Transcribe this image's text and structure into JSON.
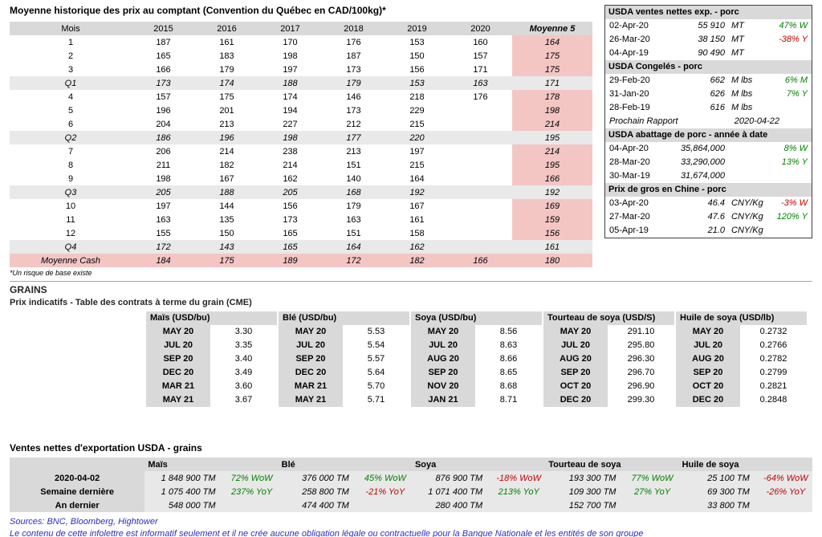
{
  "colors": {
    "positive": "#008000",
    "negative": "#c00000",
    "pink": "#f3c6c4",
    "header_gray": "#d9d9d9",
    "quarter_gray": "#e9e9e9",
    "cell_gray": "#e8e8e8",
    "footer_blue": "#2e2ebe"
  },
  "main_table": {
    "title": "Moyenne historique des prix au comptant (Convention du Québec en CAD/100kg)*",
    "headers": [
      "Mois",
      "2015",
      "2016",
      "2017",
      "2018",
      "2019",
      "2020",
      "Moyenne 5"
    ],
    "footnote": "*Un risque de base existe",
    "rows": [
      {
        "label": "1",
        "type": "month",
        "values": [
          "187",
          "161",
          "170",
          "176",
          "153",
          "160"
        ],
        "avg": "164"
      },
      {
        "label": "2",
        "type": "month",
        "values": [
          "165",
          "183",
          "198",
          "187",
          "150",
          "157"
        ],
        "avg": "175"
      },
      {
        "label": "3",
        "type": "month",
        "values": [
          "166",
          "179",
          "197",
          "173",
          "156",
          "171"
        ],
        "avg": "175"
      },
      {
        "label": "Q1",
        "type": "quarter",
        "values": [
          "173",
          "174",
          "188",
          "179",
          "153",
          "163"
        ],
        "avg": "171"
      },
      {
        "label": "4",
        "type": "month",
        "values": [
          "157",
          "175",
          "174",
          "146",
          "218",
          "176"
        ],
        "avg": "178"
      },
      {
        "label": "5",
        "type": "month",
        "values": [
          "196",
          "201",
          "194",
          "173",
          "229",
          ""
        ],
        "avg": "198"
      },
      {
        "label": "6",
        "type": "month",
        "values": [
          "204",
          "213",
          "227",
          "212",
          "215",
          ""
        ],
        "avg": "214"
      },
      {
        "label": "Q2",
        "type": "quarter",
        "values": [
          "186",
          "196",
          "198",
          "177",
          "220",
          ""
        ],
        "avg": "195"
      },
      {
        "label": "7",
        "type": "month",
        "values": [
          "206",
          "214",
          "238",
          "213",
          "197",
          ""
        ],
        "avg": "214"
      },
      {
        "label": "8",
        "type": "month",
        "values": [
          "211",
          "182",
          "214",
          "151",
          "215",
          ""
        ],
        "avg": "195"
      },
      {
        "label": "9",
        "type": "month",
        "values": [
          "198",
          "167",
          "162",
          "140",
          "164",
          ""
        ],
        "avg": "166"
      },
      {
        "label": "Q3",
        "type": "quarter",
        "values": [
          "205",
          "188",
          "205",
          "168",
          "192",
          ""
        ],
        "avg": "192"
      },
      {
        "label": "10",
        "type": "month",
        "values": [
          "197",
          "144",
          "156",
          "179",
          "167",
          ""
        ],
        "avg": "169"
      },
      {
        "label": "11",
        "type": "month",
        "values": [
          "163",
          "135",
          "173",
          "163",
          "161",
          ""
        ],
        "avg": "159"
      },
      {
        "label": "12",
        "type": "month",
        "values": [
          "155",
          "150",
          "165",
          "151",
          "158",
          ""
        ],
        "avg": "156"
      },
      {
        "label": "Q4",
        "type": "quarter",
        "values": [
          "172",
          "143",
          "165",
          "164",
          "162",
          ""
        ],
        "avg": "161"
      },
      {
        "label": "Moyenne Cash",
        "type": "cash",
        "values": [
          "184",
          "175",
          "189",
          "172",
          "182",
          "166"
        ],
        "avg": "180"
      }
    ]
  },
  "side_panels": [
    {
      "title": "USDA ventes nettes exp. - porc",
      "rows": [
        {
          "date": "02-Apr-20",
          "value": "55 910",
          "unit": "MT",
          "change": "47% W",
          "dir": "up"
        },
        {
          "date": "26-Mar-20",
          "value": "38 150",
          "unit": "MT",
          "change": "-38% Y",
          "dir": "down"
        },
        {
          "date": "04-Apr-19",
          "value": "90 490",
          "unit": "MT",
          "change": "",
          "dir": ""
        }
      ]
    },
    {
      "title": "USDA Congelés - porc",
      "rows": [
        {
          "date": "29-Feb-20",
          "value": "662",
          "unit": "M lbs",
          "change": "6% M",
          "dir": "up"
        },
        {
          "date": "31-Jan-20",
          "value": "626",
          "unit": "M lbs",
          "change": "7% Y",
          "dir": "up"
        },
        {
          "date": "28-Feb-19",
          "value": "616",
          "unit": "M lbs",
          "change": "",
          "dir": ""
        }
      ],
      "note_after": {
        "label": "Prochain Rapport",
        "value": "2020-04-22"
      }
    },
    {
      "title": "USDA abattage de porc - année à date",
      "rows": [
        {
          "date": "04-Apr-20",
          "value": "35,864,000",
          "unit": "",
          "change": "8% W",
          "dir": "up"
        },
        {
          "date": "28-Mar-20",
          "value": "33,290,000",
          "unit": "",
          "change": "13% Y",
          "dir": "up"
        },
        {
          "date": "30-Mar-19",
          "value": "31,674,000",
          "unit": "",
          "change": "",
          "dir": ""
        }
      ]
    },
    {
      "title": "Prix de gros en Chine - porc",
      "rows": [
        {
          "date": "03-Apr-20",
          "value": "46.4",
          "unit": "CNY/Kg",
          "change": "-3% W",
          "dir": "down"
        },
        {
          "date": "27-Mar-20",
          "value": "47.6",
          "unit": "CNY/Kg",
          "change": "120% Y",
          "dir": "up"
        },
        {
          "date": "05-Apr-19",
          "value": "21.0",
          "unit": "CNY/Kg",
          "change": "",
          "dir": ""
        }
      ]
    }
  ],
  "grains": {
    "section_title": "GRAINS",
    "subtitle": "Prix indicatifs - Table des contrats à terme du grain (CME)",
    "tables": [
      {
        "title": "Maïs (USD/bu)",
        "rows": [
          [
            "MAY 20",
            "3.30"
          ],
          [
            "JUL 20",
            "3.35"
          ],
          [
            "SEP 20",
            "3.40"
          ],
          [
            "DEC 20",
            "3.49"
          ],
          [
            "MAR 21",
            "3.60"
          ],
          [
            "MAY 21",
            "3.67"
          ]
        ]
      },
      {
        "title": "Blé (USD/bu)",
        "rows": [
          [
            "MAY 20",
            "5.53"
          ],
          [
            "JUL 20",
            "5.54"
          ],
          [
            "SEP 20",
            "5.57"
          ],
          [
            "DEC 20",
            "5.64"
          ],
          [
            "MAR 21",
            "5.70"
          ],
          [
            "MAY 21",
            "5.71"
          ]
        ]
      },
      {
        "title": "Soya (USD/bu)",
        "rows": [
          [
            "MAY 20",
            "8.56"
          ],
          [
            "JUL 20",
            "8.63"
          ],
          [
            "AUG 20",
            "8.66"
          ],
          [
            "SEP 20",
            "8.65"
          ],
          [
            "NOV 20",
            "8.68"
          ],
          [
            "JAN 21",
            "8.71"
          ]
        ]
      },
      {
        "title": "Tourteau de soya (USD/S)",
        "rows": [
          [
            "MAY 20",
            "291.10"
          ],
          [
            "JUL 20",
            "295.80"
          ],
          [
            "AUG 20",
            "296.30"
          ],
          [
            "SEP 20",
            "296.70"
          ],
          [
            "OCT 20",
            "296.90"
          ],
          [
            "DEC 20",
            "299.30"
          ]
        ]
      },
      {
        "title": "Huile de soya (USD/lb)",
        "rows": [
          [
            "MAY 20",
            "0.2732"
          ],
          [
            "JUL 20",
            "0.2766"
          ],
          [
            "AUG 20",
            "0.2782"
          ],
          [
            "SEP 20",
            "0.2799"
          ],
          [
            "OCT 20",
            "0.2821"
          ],
          [
            "DEC 20",
            "0.2848"
          ]
        ]
      }
    ]
  },
  "exports": {
    "title": "Ventes nettes d'exportation USDA - grains",
    "commodities": [
      "Maïs",
      "Blé",
      "Soya",
      "Tourteau de soya",
      "Huile de soya"
    ],
    "rows": [
      {
        "label": "2020-04-02",
        "cells": [
          {
            "value": "1 848 900 TM",
            "change": "72% WoW",
            "dir": "up"
          },
          {
            "value": "376 000 TM",
            "change": "45% WoW",
            "dir": "up"
          },
          {
            "value": "876 900 TM",
            "change": "-18% WoW",
            "dir": "down"
          },
          {
            "value": "193 300 TM",
            "change": "77% WoW",
            "dir": "up"
          },
          {
            "value": "25 100 TM",
            "change": "-64% WoW",
            "dir": "down"
          }
        ]
      },
      {
        "label": "Semaine dernière",
        "cells": [
          {
            "value": "1 075 400 TM",
            "change": "237% YoY",
            "dir": "up"
          },
          {
            "value": "258 800 TM",
            "change": "-21% YoY",
            "dir": "down"
          },
          {
            "value": "1 071 400 TM",
            "change": "213% YoY",
            "dir": "up"
          },
          {
            "value": "109 300 TM",
            "change": "27% YoY",
            "dir": "up"
          },
          {
            "value": "69 300 TM",
            "change": "-26% YoY",
            "dir": "down"
          }
        ]
      },
      {
        "label": "An dernier",
        "cells": [
          {
            "value": "548 000 TM",
            "change": "",
            "dir": ""
          },
          {
            "value": "474 400 TM",
            "change": "",
            "dir": ""
          },
          {
            "value": "280 400 TM",
            "change": "",
            "dir": ""
          },
          {
            "value": "152 700 TM",
            "change": "",
            "dir": ""
          },
          {
            "value": "33 800 TM",
            "change": "",
            "dir": ""
          }
        ]
      }
    ]
  },
  "footer": {
    "sources": "Sources: BNC, Bloomberg, Hightower",
    "disclaimer": "Le contenu de cette infolettre est informatif seulement et il ne crée aucune obligation légale ou contractuelle pour la Banque Nationale et les entités de son groupe"
  }
}
